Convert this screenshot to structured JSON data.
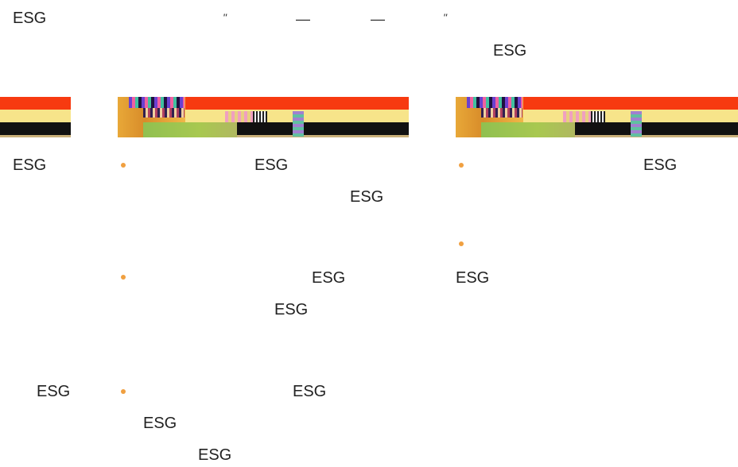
{
  "header": {
    "left_label": "ESG",
    "quote_open": "\"",
    "dash_1": "—",
    "dash_2": "—",
    "quote_close": "\"",
    "sub_label": "ESG"
  },
  "columns": [
    {
      "items": [
        {
          "label": "ESG"
        },
        {
          "label": "ESG"
        }
      ]
    },
    {
      "bullets": [
        {
          "text": "ESG",
          "continuation": "ESG"
        },
        {
          "text": "ESG",
          "continuation": "ESG"
        },
        {
          "text": "ESG",
          "continuation": "ESG",
          "extra": "ESG"
        }
      ]
    },
    {
      "bullets": [
        {
          "text": "ESG"
        },
        {
          "text": "",
          "continuation": "ESG"
        }
      ]
    }
  ],
  "colors": {
    "accent_bullet": "#f0a040",
    "banner_red": "#f73a10",
    "banner_yellow": "#f7e48a",
    "banner_black": "#111111"
  }
}
